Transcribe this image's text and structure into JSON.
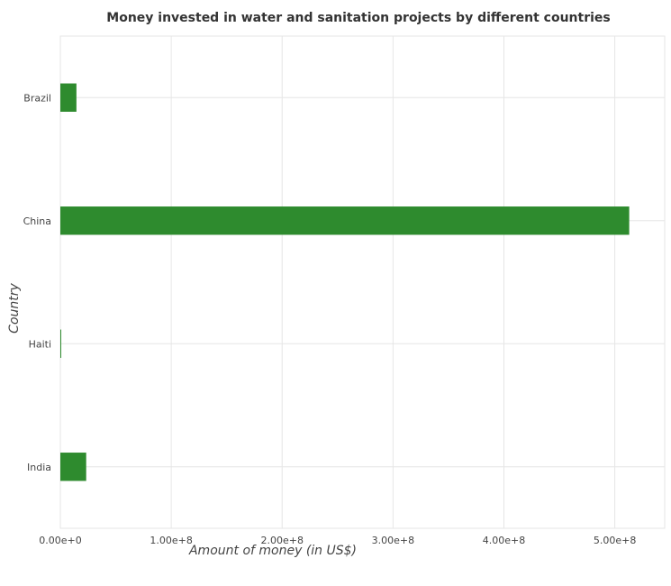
{
  "chart_data": {
    "type": "bar",
    "orientation": "horizontal",
    "title": "Money invested in water and sanitation projects by different countries",
    "xlabel": "Amount of money (in US$)",
    "ylabel": "Country",
    "categories": [
      "Brazil",
      "China",
      "Haiti",
      "India"
    ],
    "values": [
      14500000,
      513000000,
      700000,
      23300000
    ],
    "xlim": [
      0,
      545000000
    ],
    "xticks": [
      0,
      100000000,
      200000000,
      300000000,
      400000000,
      500000000
    ],
    "xtick_labels": [
      "0.00e+0",
      "1.00e+8",
      "2.00e+8",
      "3.00e+8",
      "4.00e+8",
      "5.00e+8"
    ],
    "grid": true,
    "legend": "none",
    "bar_color": "#2e8b2e"
  }
}
